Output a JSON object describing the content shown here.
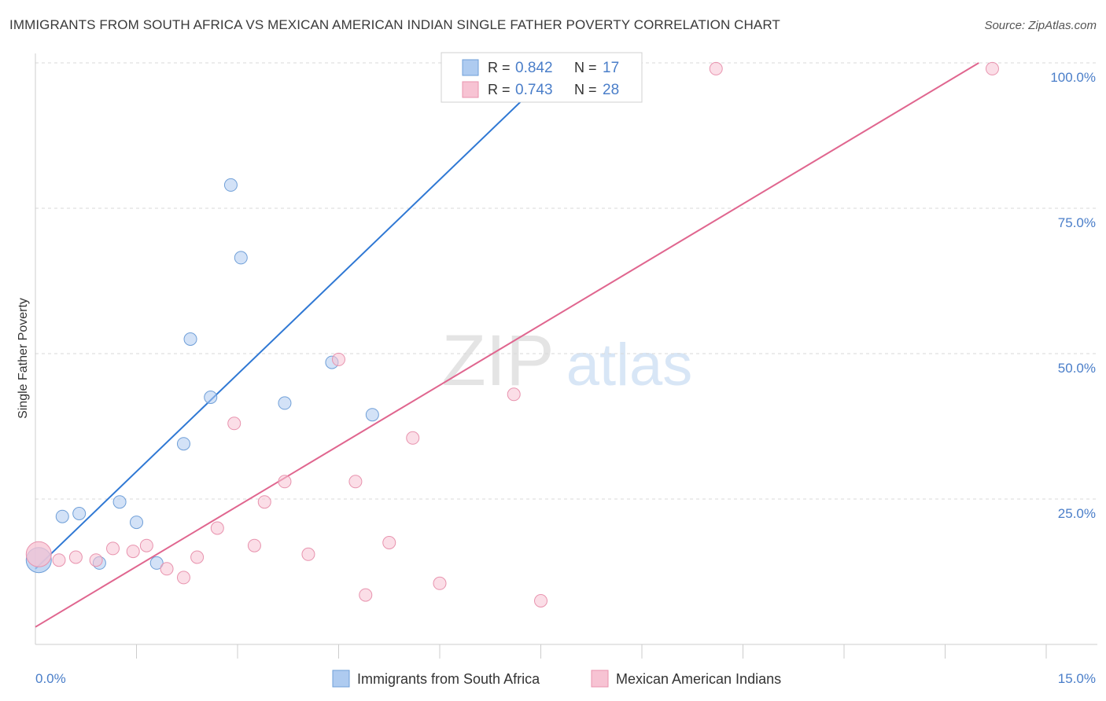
{
  "title": "IMMIGRANTS FROM SOUTH AFRICA VS MEXICAN AMERICAN INDIAN SINGLE FATHER POVERTY CORRELATION CHART",
  "source": "Source: ZipAtlas.com",
  "watermark": {
    "zip": "ZIP",
    "atlas": "atlas"
  },
  "colors": {
    "blue_fill": "#aecbf0",
    "blue_stroke": "#6f9fd8",
    "blue_line": "#2f78d4",
    "pink_fill": "#f7c3d3",
    "pink_stroke": "#e893ae",
    "pink_line": "#e0668f",
    "tick_text": "#4a7ec9",
    "grid": "#d9d9d9"
  },
  "legend": {
    "r_label": "R =",
    "n_label": "N =",
    "rows": [
      {
        "r": "0.842",
        "n": "17",
        "color": "blue"
      },
      {
        "r": "0.743",
        "n": "28",
        "color": "pink"
      }
    ]
  },
  "chart_data": {
    "type": "scatter",
    "ylabel": "Single Father Poverty",
    "x_range": [
      0,
      15
    ],
    "y_range": [
      0,
      100
    ],
    "x_tick_labels": [
      {
        "value": 0,
        "label": "0.0%"
      },
      {
        "value": 15,
        "label": "15.0%"
      }
    ],
    "y_tick_labels": [
      {
        "value": 25,
        "label": "25.0%"
      },
      {
        "value": 50,
        "label": "50.0%"
      },
      {
        "value": 75,
        "label": "75.0%"
      },
      {
        "value": 100,
        "label": "100.0%"
      }
    ],
    "grid": true,
    "series": [
      {
        "name": "Immigrants from South Africa",
        "color": "blue",
        "points": [
          {
            "x": 0.05,
            "y": 14.5,
            "big": true
          },
          {
            "x": 0.4,
            "y": 22.0
          },
          {
            "x": 0.65,
            "y": 22.5
          },
          {
            "x": 0.95,
            "y": 14.0
          },
          {
            "x": 1.25,
            "y": 24.5
          },
          {
            "x": 1.5,
            "y": 21.0
          },
          {
            "x": 1.8,
            "y": 14.0
          },
          {
            "x": 2.2,
            "y": 34.5
          },
          {
            "x": 2.3,
            "y": 52.5
          },
          {
            "x": 2.6,
            "y": 42.5
          },
          {
            "x": 2.9,
            "y": 79.0
          },
          {
            "x": 3.05,
            "y": 66.5
          },
          {
            "x": 3.7,
            "y": 41.5
          },
          {
            "x": 4.4,
            "y": 48.5
          },
          {
            "x": 5.0,
            "y": 39.5
          },
          {
            "x": 6.5,
            "y": 98.5
          },
          {
            "x": 7.7,
            "y": 98.5
          }
        ],
        "trend": {
          "x1": 0.0,
          "y1": 13.0,
          "x2": 7.8,
          "y2": 100.0
        }
      },
      {
        "name": "Mexican American Indians",
        "color": "pink",
        "points": [
          {
            "x": 0.05,
            "y": 15.5,
            "big": true
          },
          {
            "x": 0.35,
            "y": 14.5
          },
          {
            "x": 0.6,
            "y": 15.0
          },
          {
            "x": 0.9,
            "y": 14.5
          },
          {
            "x": 1.15,
            "y": 16.5
          },
          {
            "x": 1.45,
            "y": 16.0
          },
          {
            "x": 1.65,
            "y": 17.0
          },
          {
            "x": 1.95,
            "y": 13.0
          },
          {
            "x": 2.2,
            "y": 11.5
          },
          {
            "x": 2.4,
            "y": 15.0
          },
          {
            "x": 2.7,
            "y": 20.0
          },
          {
            "x": 2.95,
            "y": 38.0
          },
          {
            "x": 3.25,
            "y": 17.0
          },
          {
            "x": 3.4,
            "y": 24.5
          },
          {
            "x": 3.7,
            "y": 28.0
          },
          {
            "x": 4.05,
            "y": 15.5
          },
          {
            "x": 4.5,
            "y": 49.0
          },
          {
            "x": 4.75,
            "y": 28.0
          },
          {
            "x": 4.9,
            "y": 8.5
          },
          {
            "x": 5.25,
            "y": 17.5
          },
          {
            "x": 5.6,
            "y": 35.5
          },
          {
            "x": 6.0,
            "y": 10.5
          },
          {
            "x": 7.1,
            "y": 43.0
          },
          {
            "x": 7.5,
            "y": 7.5
          },
          {
            "x": 8.0,
            "y": 99.0
          },
          {
            "x": 8.25,
            "y": 99.0
          },
          {
            "x": 10.1,
            "y": 99.0
          },
          {
            "x": 14.2,
            "y": 99.0
          }
        ],
        "trend": {
          "x1": 0.0,
          "y1": 3.0,
          "x2": 14.0,
          "y2": 100.0
        }
      }
    ]
  }
}
